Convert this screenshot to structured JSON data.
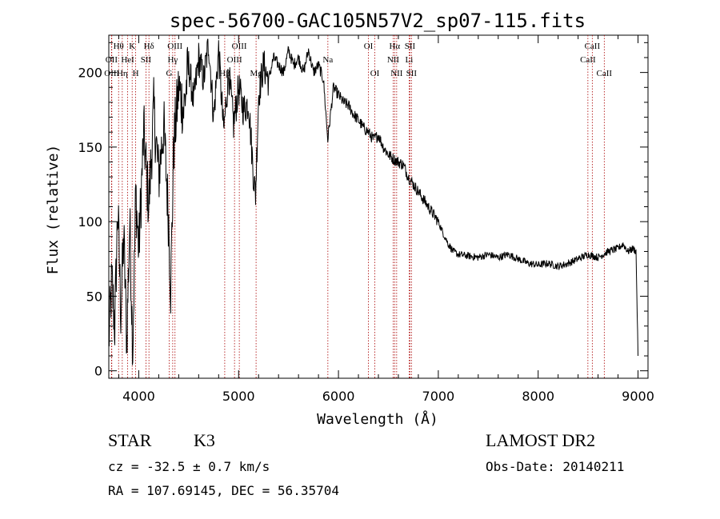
{
  "chart_data": {
    "type": "line",
    "title": "spec-56700-GAC105N57V2_sp07-115.fits",
    "xlabel": "Wavelength (Å)",
    "ylabel": "Flux (relative)",
    "xlim": [
      3700,
      9100
    ],
    "ylim": [
      -5,
      225
    ],
    "xticks": [
      4000,
      5000,
      6000,
      7000,
      8000,
      9000
    ],
    "yticks": [
      0,
      50,
      100,
      150,
      200
    ],
    "grid": false,
    "line_color": "#000000",
    "marker_color": "#aa0000",
    "series": [
      {
        "x": [
          3700,
          3730,
          3760,
          3790,
          3820,
          3850,
          3880,
          3910,
          3940,
          3970,
          4000,
          4050,
          4100,
          4150,
          4200,
          4250,
          4300,
          4320,
          4350,
          4400,
          4450,
          4500,
          4550,
          4600,
          4650,
          4700,
          4750,
          4800,
          4850,
          4900,
          4950,
          5000,
          5050,
          5100,
          5150,
          5170,
          5200,
          5250,
          5300,
          5350,
          5400,
          5450,
          5500,
          5550,
          5600,
          5650,
          5700,
          5750,
          5800,
          5850,
          5893,
          5950,
          6000,
          6050,
          6100,
          6150,
          6200,
          6250,
          6300,
          6350,
          6400,
          6450,
          6500,
          6550,
          6600,
          6650,
          6700,
          6750,
          6800,
          6850,
          6900,
          6950,
          7000,
          7050,
          7100,
          7150,
          7200,
          7300,
          7400,
          7500,
          7600,
          7700,
          7800,
          7900,
          8000,
          8100,
          8200,
          8300,
          8400,
          8500,
          8600,
          8700,
          8800,
          8850,
          8900,
          8950,
          8980,
          9000
        ],
        "values": [
          20,
          60,
          30,
          110,
          40,
          90,
          20,
          100,
          15,
          120,
          80,
          160,
          110,
          175,
          130,
          165,
          100,
          55,
          150,
          190,
          175,
          205,
          180,
          210,
          195,
          220,
          170,
          215,
          160,
          200,
          165,
          190,
          175,
          180,
          130,
          118,
          185,
          205,
          195,
          210,
          205,
          200,
          215,
          205,
          210,
          200,
          215,
          200,
          205,
          195,
          155,
          190,
          185,
          180,
          178,
          172,
          168,
          163,
          160,
          155,
          158,
          150,
          145,
          142,
          140,
          138,
          130,
          125,
          120,
          115,
          110,
          105,
          100,
          92,
          85,
          80,
          78,
          77,
          76,
          78,
          76,
          78,
          75,
          72,
          71,
          72,
          70,
          72,
          75,
          78,
          76,
          80,
          82,
          85,
          80,
          82,
          80,
          10
        ]
      }
    ],
    "lines": [
      {
        "label": "OII",
        "x": 3727,
        "row": 1
      },
      {
        "label": "OIII",
        "x": 3730,
        "row": 2
      },
      {
        "label": "Hθ",
        "x": 3798,
        "row": 0
      },
      {
        "label": "Hη",
        "x": 3835,
        "row": 2
      },
      {
        "label": "HeI",
        "x": 3889,
        "row": 1
      },
      {
        "label": "K",
        "x": 3934,
        "row": 0
      },
      {
        "label": "H",
        "x": 3969,
        "row": 2
      },
      {
        "label": "SII",
        "x": 4072,
        "row": 1
      },
      {
        "label": "Hδ",
        "x": 4102,
        "row": 0
      },
      {
        "label": "G",
        "x": 4305,
        "row": 2
      },
      {
        "label": "Hγ",
        "x": 4340,
        "row": 1
      },
      {
        "label": "OIII",
        "x": 4363,
        "row": 0
      },
      {
        "label": "Hβ",
        "x": 4861,
        "row": 2
      },
      {
        "label": "OIII",
        "x": 4959,
        "row": 1
      },
      {
        "label": "OIII",
        "x": 5007,
        "row": 0
      },
      {
        "label": "Mg",
        "x": 5175,
        "row": 2
      },
      {
        "label": "Na",
        "x": 5894,
        "row": 1
      },
      {
        "label": "OI",
        "x": 6300,
        "row": 0
      },
      {
        "label": "OI",
        "x": 6364,
        "row": 2
      },
      {
        "label": "NII",
        "x": 6548,
        "row": 1
      },
      {
        "label": "Hα",
        "x": 6563,
        "row": 0
      },
      {
        "label": "NII",
        "x": 6583,
        "row": 2
      },
      {
        "label": "Li",
        "x": 6708,
        "row": 1
      },
      {
        "label": "SII",
        "x": 6716,
        "row": 0
      },
      {
        "label": "SII",
        "x": 6731,
        "row": 2
      },
      {
        "label": "CaII",
        "x": 8498,
        "row": 1
      },
      {
        "label": "CaII",
        "x": 8542,
        "row": 0
      },
      {
        "label": "CaII",
        "x": 8662,
        "row": 2
      }
    ]
  },
  "footer": {
    "class_label": "STAR",
    "subclass": "K3",
    "survey": "LAMOST DR2",
    "redshift": "cz = -32.5 ± 0.7 km/s",
    "obs_date": "Obs-Date: 20140211",
    "coords": "RA = 107.69145, DEC =  56.35704"
  }
}
